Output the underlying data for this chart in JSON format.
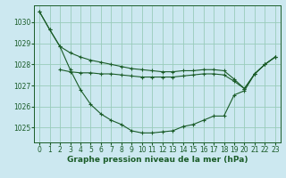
{
  "background_color": "#cce8f0",
  "grid_color": "#99ccbb",
  "line_color": "#1a5c28",
  "xlabel": "Graphe pression niveau de la mer (hPa)",
  "xlabel_fontsize": 6.5,
  "tick_fontsize": 5.5,
  "ylim": [
    1024.3,
    1030.8
  ],
  "xlim": [
    -0.5,
    23.5
  ],
  "yticks": [
    1025,
    1026,
    1027,
    1028,
    1029,
    1030
  ],
  "xticks": [
    0,
    1,
    2,
    3,
    4,
    5,
    6,
    7,
    8,
    9,
    10,
    11,
    12,
    13,
    14,
    15,
    16,
    17,
    18,
    19,
    20,
    21,
    22,
    23
  ],
  "series1_x": [
    0,
    1,
    2,
    3,
    4,
    5,
    6,
    7,
    8,
    9,
    10,
    11,
    12,
    13,
    14,
    15,
    16,
    17,
    18,
    19,
    20,
    21,
    22,
    23
  ],
  "series1_y": [
    1030.5,
    1029.65,
    1028.85,
    1028.55,
    1028.35,
    1028.2,
    1028.1,
    1028.0,
    1027.9,
    1027.8,
    1027.75,
    1027.7,
    1027.65,
    1027.65,
    1027.7,
    1027.7,
    1027.75,
    1027.75,
    1027.7,
    1027.3,
    1026.85,
    1027.55,
    1028.0,
    1028.35
  ],
  "series2_x": [
    2,
    3,
    4,
    5,
    6,
    7,
    8,
    9,
    10,
    11,
    12,
    13,
    14,
    15,
    16,
    17,
    18,
    19,
    20,
    21,
    22,
    23
  ],
  "series2_y": [
    1027.75,
    1027.65,
    1027.6,
    1027.6,
    1027.55,
    1027.55,
    1027.5,
    1027.45,
    1027.4,
    1027.4,
    1027.4,
    1027.4,
    1027.45,
    1027.5,
    1027.55,
    1027.55,
    1027.5,
    1027.2,
    1026.85,
    1027.55,
    1028.0,
    1028.35
  ],
  "series3_x": [
    0,
    1,
    2,
    3,
    4,
    5,
    6,
    7,
    8,
    9,
    10,
    11,
    12,
    13,
    14,
    15,
    16,
    17,
    18,
    19,
    20,
    21,
    22,
    23
  ],
  "series3_y": [
    1030.5,
    1029.65,
    1028.85,
    1027.75,
    1026.8,
    1026.1,
    1025.65,
    1025.35,
    1025.15,
    1024.85,
    1024.75,
    1024.75,
    1024.8,
    1024.85,
    1025.05,
    1025.15,
    1025.35,
    1025.55,
    1025.55,
    1026.55,
    1026.75,
    1027.55,
    1028.0,
    1028.35
  ]
}
